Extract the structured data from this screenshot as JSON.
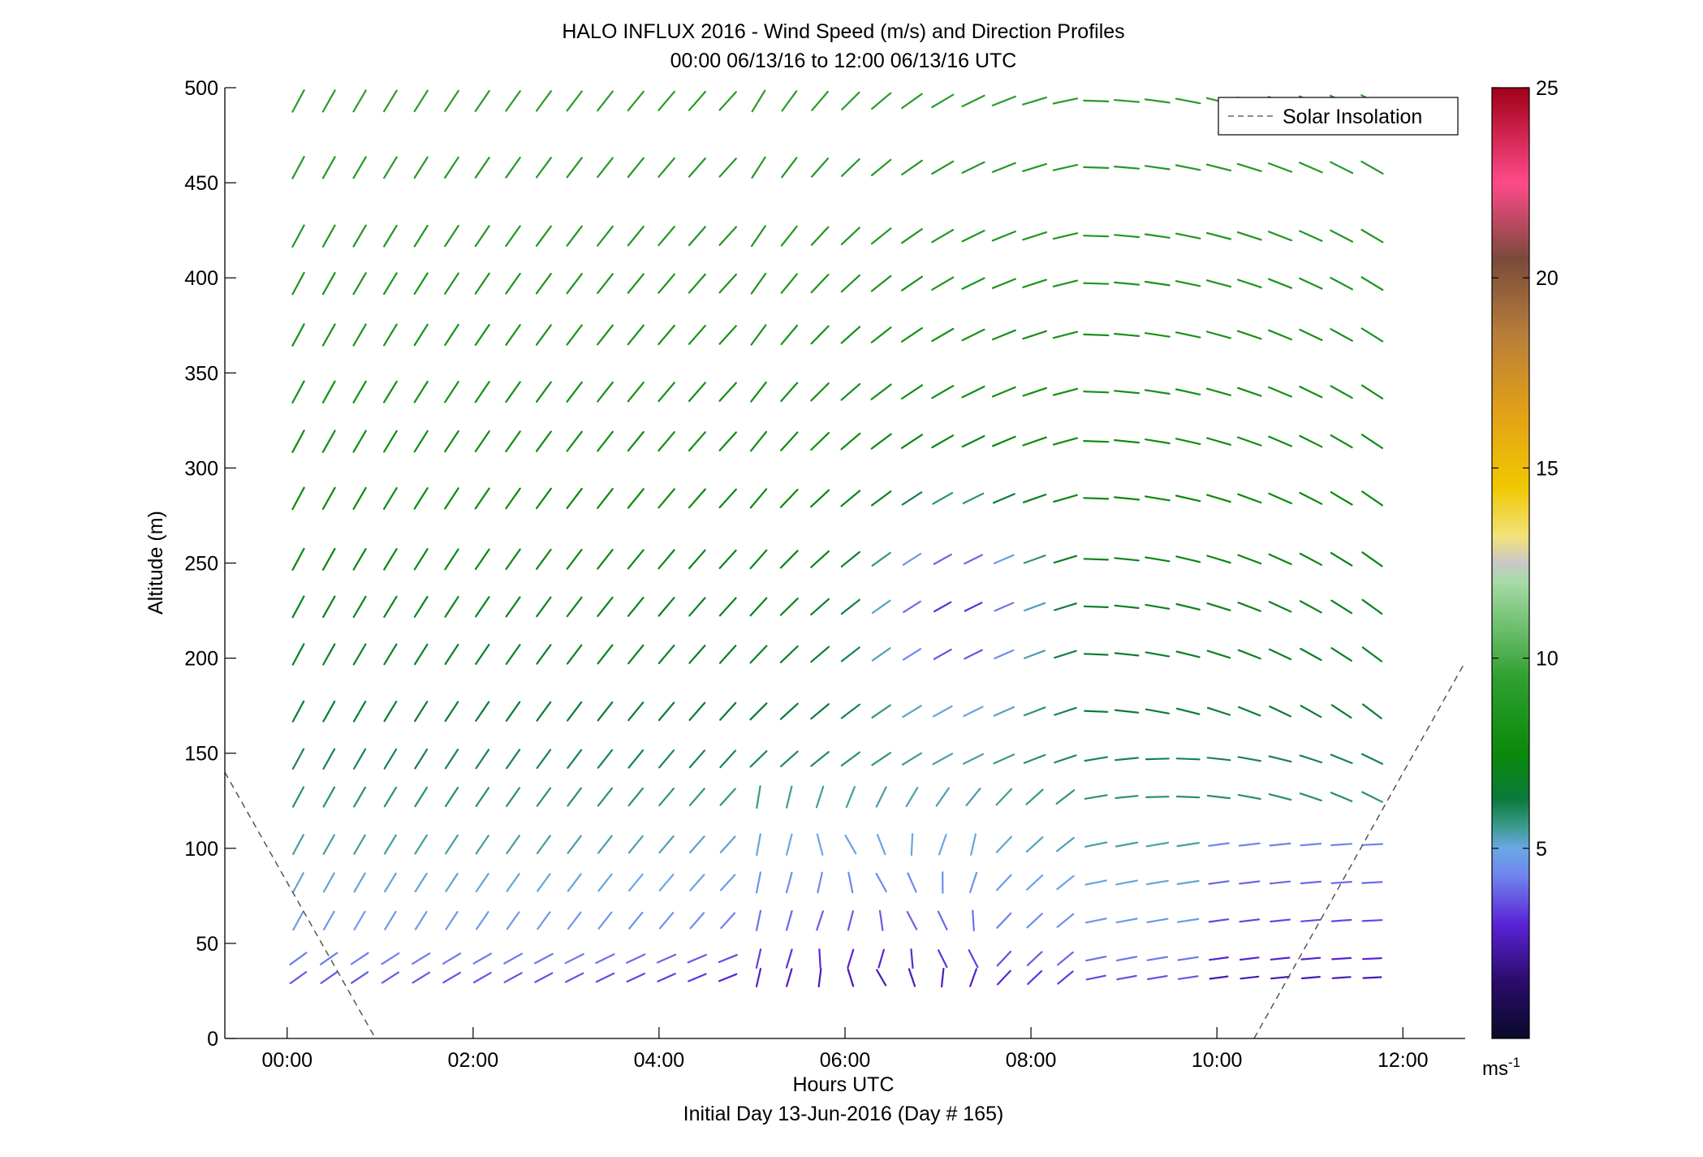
{
  "chart_data": {
    "type": "wind-barb profile",
    "title_line1": "HALO INFLUX 2016 - Wind Speed (m/s) and Direction Profiles",
    "title_line2": "00:00 06/13/16 to 12:00 06/13/16  UTC",
    "xlabel": "Hours UTC",
    "xlabel2": "Initial Day 13-Jun-2016 (Day # 165)",
    "ylabel": "Altitude (m)",
    "xlim": [
      -0.67,
      12.67
    ],
    "ylim": [
      0,
      500
    ],
    "x_ticks": [
      0,
      2,
      4,
      6,
      8,
      10,
      12
    ],
    "x_tick_labels": [
      "00:00",
      "02:00",
      "04:00",
      "06:00",
      "08:00",
      "10:00",
      "12:00"
    ],
    "y_ticks": [
      0,
      50,
      100,
      150,
      200,
      250,
      300,
      350,
      400,
      450,
      500
    ],
    "y_tick_labels": [
      "0",
      "50",
      "100",
      "150",
      "200",
      "250",
      "300",
      "350",
      "400",
      "450",
      "500"
    ],
    "altitudes": [
      32,
      42,
      62,
      82,
      102,
      127,
      147,
      172,
      202,
      227,
      252,
      284,
      314,
      340,
      370,
      397,
      422,
      458,
      493
    ],
    "time_step_hours": 0.33,
    "legend": {
      "label": "Solar Insolation",
      "location": "top-right"
    },
    "solar_insolation": [
      {
        "x": [
          -0.67,
          0.95
        ],
        "y": [
          140,
          0
        ]
      },
      {
        "x": [
          10.4,
          12.67
        ],
        "y": [
          0,
          198
        ]
      }
    ],
    "colorbar": {
      "min": 0,
      "max": 25,
      "ticks": [
        5,
        10,
        15,
        20,
        25
      ],
      "tick_labels": [
        "5",
        "10",
        "15",
        "20",
        "25"
      ],
      "unit": "ms",
      "unit_exp": "-1",
      "stops": [
        {
          "v": 0,
          "c": "#0a0a2a"
        },
        {
          "v": 1.5,
          "c": "#2a0c6a"
        },
        {
          "v": 3.0,
          "c": "#5a22d6"
        },
        {
          "v": 4.3,
          "c": "#6f86ee"
        },
        {
          "v": 5.0,
          "c": "#6aa8e6"
        },
        {
          "v": 5.6,
          "c": "#3a9a8a"
        },
        {
          "v": 6.3,
          "c": "#0a7a3a"
        },
        {
          "v": 7.5,
          "c": "#0a8a0a"
        },
        {
          "v": 9.5,
          "c": "#30a030"
        },
        {
          "v": 12.0,
          "c": "#a6dba6"
        },
        {
          "v": 12.5,
          "c": "#c8c8c8"
        },
        {
          "v": 13.2,
          "c": "#f2e27a"
        },
        {
          "v": 14.5,
          "c": "#f0c800"
        },
        {
          "v": 16.5,
          "c": "#e2a018"
        },
        {
          "v": 18.5,
          "c": "#b87e3a"
        },
        {
          "v": 20.5,
          "c": "#7a4a3a"
        },
        {
          "v": 22.5,
          "c": "#ff4a8a"
        },
        {
          "v": 25.0,
          "c": "#a00018"
        }
      ]
    }
  }
}
